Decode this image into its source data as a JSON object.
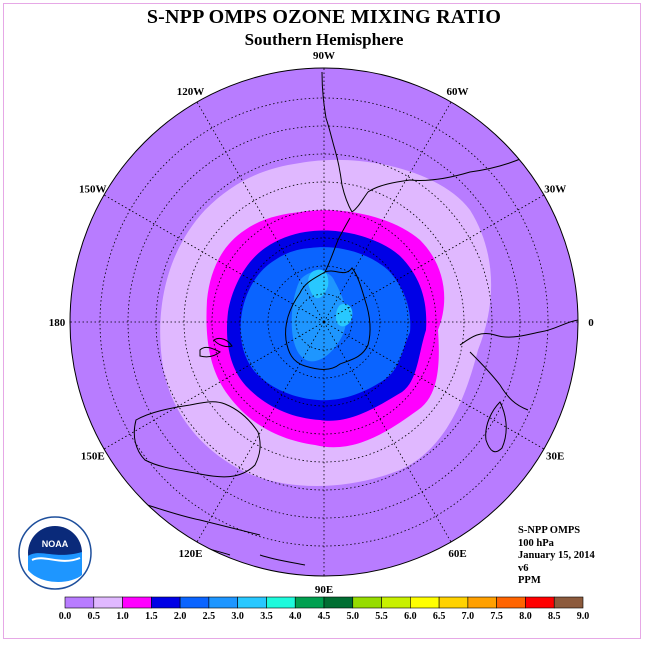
{
  "title": "S-NPP OMPS OZONE MIXING RATIO",
  "subtitle": "Southern Hemisphere",
  "longitude_labels": [
    {
      "text": "90W",
      "lon": -90
    },
    {
      "text": "60W",
      "lon": -60
    },
    {
      "text": "30W",
      "lon": -30
    },
    {
      "text": "0",
      "lon": 0
    },
    {
      "text": "30E",
      "lon": 30
    },
    {
      "text": "60E",
      "lon": 60
    },
    {
      "text": "90E",
      "lon": 90
    },
    {
      "text": "120E",
      "lon": 120
    },
    {
      "text": "150E",
      "lon": 150
    },
    {
      "text": "180",
      "lon": 180
    },
    {
      "text": "150W",
      "lon": -150
    },
    {
      "text": "120W",
      "lon": -120
    }
  ],
  "info": {
    "instrument": "S-NPP OMPS",
    "level": "100 hPa",
    "date": "January 15, 2014",
    "version": "v6",
    "units": "PPM"
  },
  "logo": {
    "name": "noaa-logo",
    "text": "NOAA"
  },
  "colorbar": {
    "ticks": [
      "0.0",
      "0.5",
      "1.0",
      "1.5",
      "2.0",
      "2.5",
      "3.0",
      "3.5",
      "4.0",
      "4.5",
      "5.0",
      "5.5",
      "6.0",
      "6.5",
      "7.0",
      "7.5",
      "8.0",
      "8.5",
      "9.0"
    ],
    "colors": [
      "#b87cff",
      "#e0b8ff",
      "#ff00ff",
      "#0000e6",
      "#0a64ff",
      "#1e96ff",
      "#28c8ff",
      "#1efadc",
      "#00a050",
      "#006e32",
      "#96dc00",
      "#c8f000",
      "#ffff00",
      "#ffd200",
      "#ffa000",
      "#ff6400",
      "#ff0000",
      "#8c5a3c"
    ]
  },
  "colors": {
    "ocean_background": "#b87cff",
    "coastline": "#000000"
  }
}
